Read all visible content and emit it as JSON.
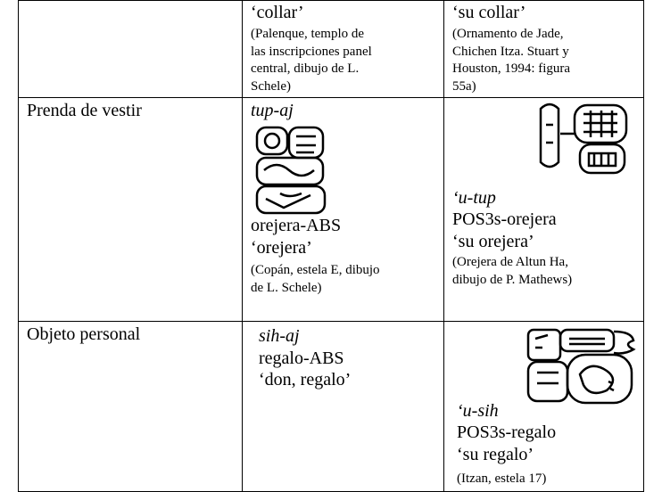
{
  "table": {
    "rows": [
      {
        "word": {
          "gloss": "‘collar’",
          "source": [
            "(Palenque, templo de",
            "las inscripciones panel",
            "central, dibujo de L.",
            "Schele)"
          ]
        },
        "possessed": {
          "gloss": "‘su collar’",
          "source": [
            "(Ornamento de Jade,",
            "Chichen Itza. Stuart y",
            "Houston, 1994: figura",
            "55a)"
          ]
        }
      },
      {
        "label": "Prenda de vestir",
        "word": {
          "form": "tup-aj",
          "morph": "orejera-ABS",
          "gloss": "‘orejera’",
          "source": [
            "(Copán, estela E, dibujo",
            "de L. Schele)"
          ]
        },
        "possessed": {
          "form": "‘u-tup",
          "morph": "POS3s-orejera",
          "gloss": "‘su orejera’",
          "source": [
            "(Orejera de Altun Ha,",
            "dibujo de P. Mathews)"
          ]
        }
      },
      {
        "label": "Objeto personal",
        "word": {
          "form": "sih-aj",
          "morph": "regalo-ABS",
          "gloss": "‘don, regalo’"
        },
        "possessed": {
          "form": "‘u-sih",
          "morph": "POS3s-regalo",
          "gloss": "‘su regalo’",
          "source": [
            "(Itzan, estela 17)"
          ]
        }
      }
    ]
  }
}
